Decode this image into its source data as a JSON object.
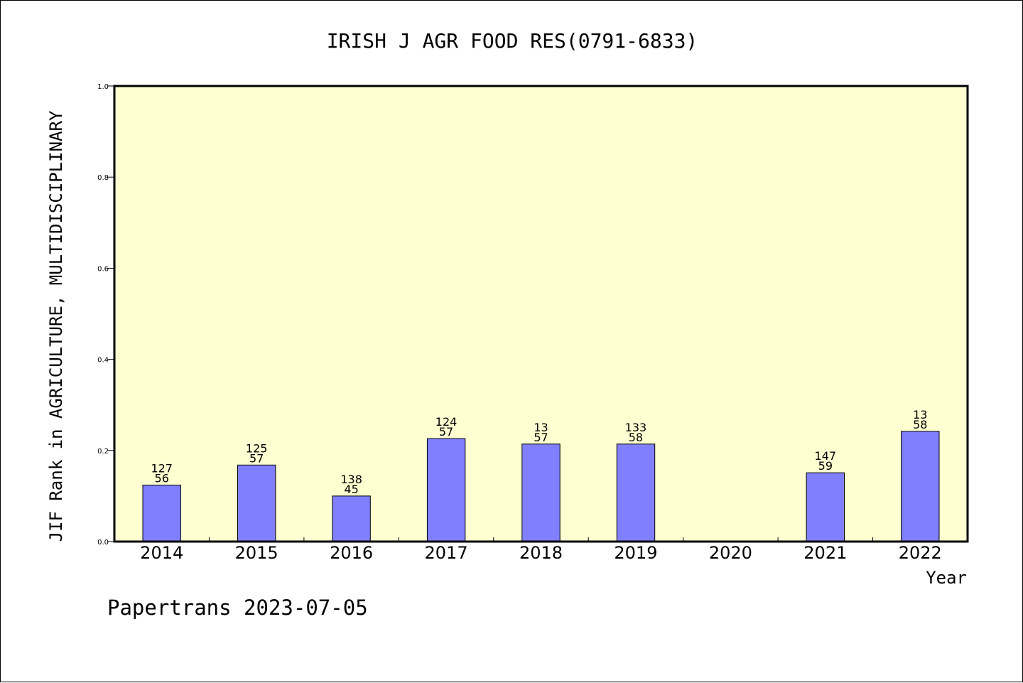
{
  "chart_data": {
    "type": "bar",
    "title": "IRISH J AGR FOOD RES(0791-6833)",
    "xlabel": "Year",
    "ylabel": "JIF Rank in AGRICULTURE, MULTIDISCIPLINARY",
    "categories": [
      "2014",
      "2015",
      "2016",
      "2017",
      "2018",
      "2019",
      "2020",
      "2021",
      "2022"
    ],
    "values": [
      0.124,
      0.168,
      0.1,
      0.226,
      0.214,
      0.214,
      null,
      0.151,
      0.242
    ],
    "label_top": [
      "127",
      "125",
      "138",
      "124",
      "13",
      "133",
      "",
      "147",
      "13"
    ],
    "label_bottom": [
      "56",
      "57",
      "45",
      "57",
      "57",
      "58",
      "",
      "59",
      "58"
    ],
    "yticks": [
      "0.0",
      "0.2",
      "0.4",
      "0.6",
      "0.8",
      "1.0"
    ],
    "ylim": [
      0,
      1
    ],
    "grid": false,
    "legend": "none",
    "colors": {
      "plot_background": "#ffffd2",
      "bar": "#8080ff",
      "axis": "#000000"
    }
  },
  "footer": {
    "watermark": "Papertrans 2023-07-05"
  }
}
